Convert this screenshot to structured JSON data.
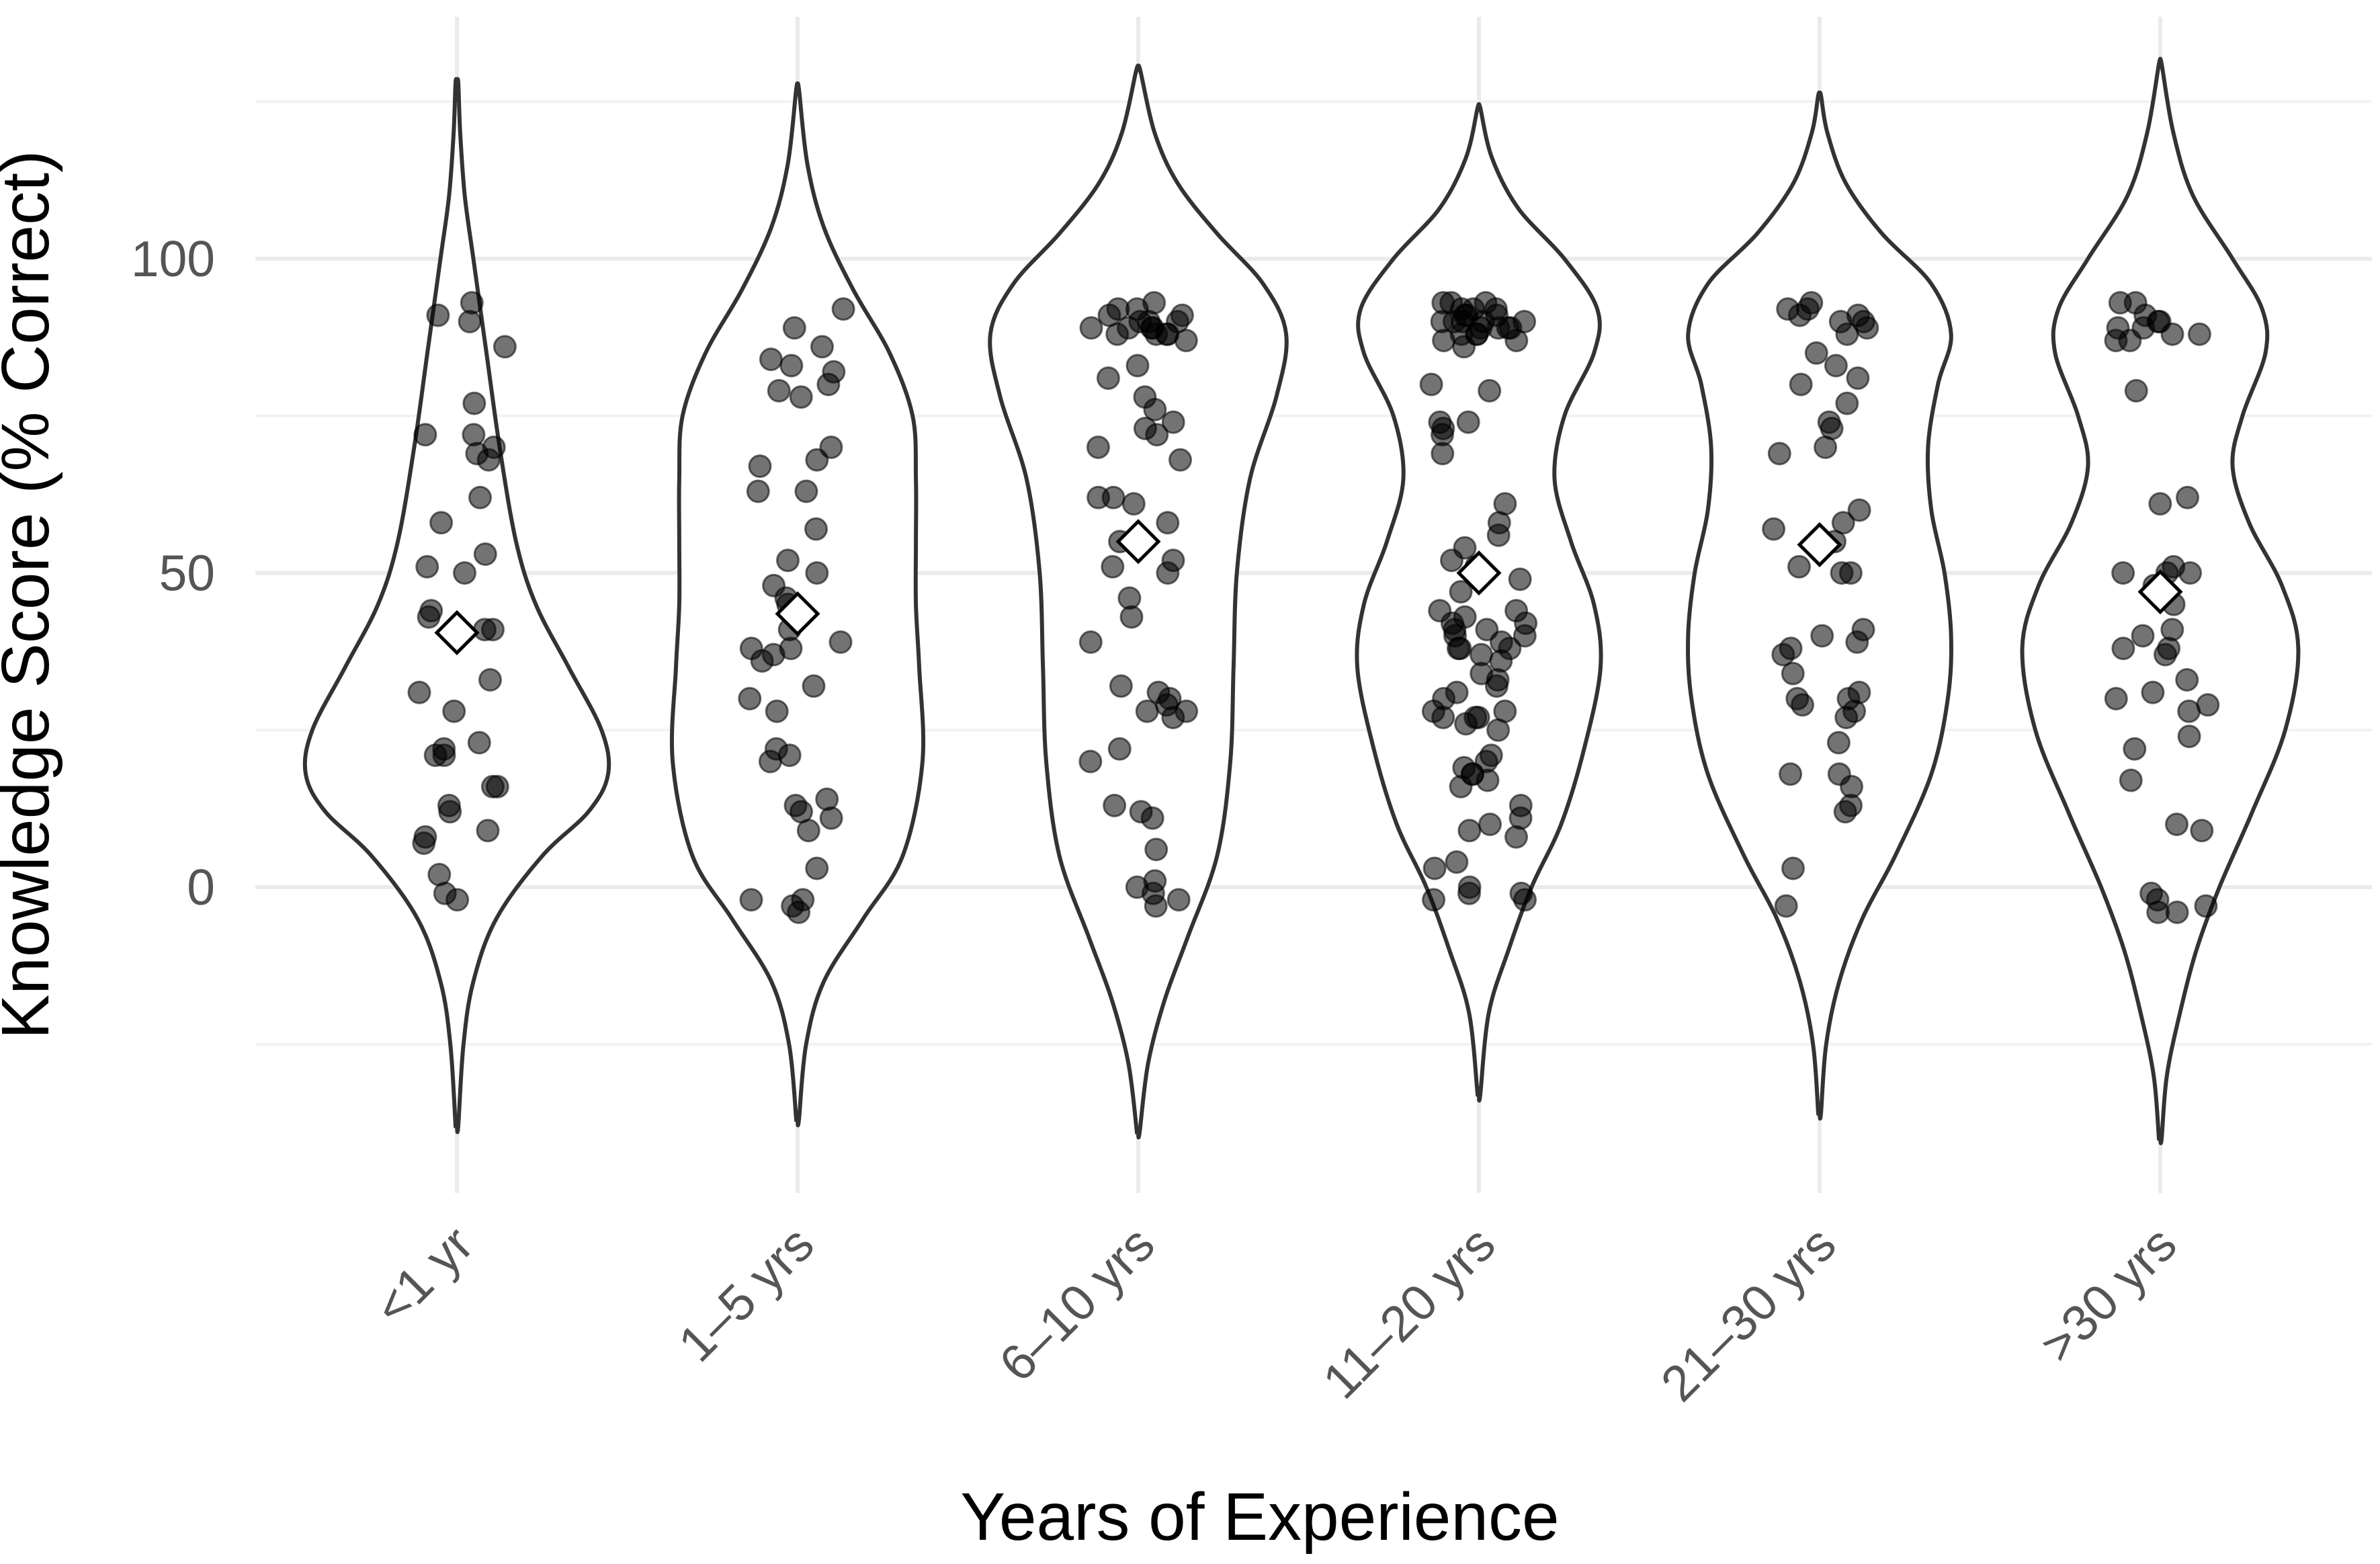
{
  "chart_data": {
    "type": "violin",
    "title": "",
    "xlabel": "Years of Experience",
    "ylabel": "Knowledge Score (% Correct)",
    "ylim": [
      -50,
      130
    ],
    "yticks": [
      0,
      50,
      100
    ],
    "grid": true,
    "legend": "none",
    "categories": [
      "<1 yr",
      "1–5 yrs",
      "6–10 yrs",
      "11–20 yrs",
      "21–30 yrs",
      ">30 yrs"
    ],
    "groups": [
      {
        "category": "<1 yr",
        "mean": 40.5,
        "range": [
          -38,
          128
        ],
        "density": [
          [
            -38,
            0.2
          ],
          [
            -25,
            1
          ],
          [
            -15,
            2.5
          ],
          [
            -5,
            6
          ],
          [
            5,
            13
          ],
          [
            12,
            20
          ],
          [
            18,
            23
          ],
          [
            25,
            22
          ],
          [
            35,
            17
          ],
          [
            45,
            12
          ],
          [
            55,
            9
          ],
          [
            70,
            6.5
          ],
          [
            85,
            4.5
          ],
          [
            100,
            2.5
          ],
          [
            110,
            1.2
          ],
          [
            120,
            0.5
          ],
          [
            128,
            0.2
          ]
        ],
        "points": [
          93,
          91,
          90,
          86,
          77,
          72,
          72,
          70,
          69,
          68,
          62,
          58,
          53,
          51,
          50,
          44,
          43,
          41,
          41,
          33,
          31,
          28,
          23,
          22,
          21,
          21,
          16,
          16,
          13,
          12,
          9,
          8,
          7,
          2,
          -1,
          -2
        ]
      },
      {
        "category": "1–5 yrs",
        "mean": 43.5,
        "range": [
          -37,
          127
        ],
        "density": [
          [
            -37,
            0.2
          ],
          [
            -25,
            1.3
          ],
          [
            -15,
            4
          ],
          [
            -5,
            10
          ],
          [
            5,
            16
          ],
          [
            20,
            19
          ],
          [
            35,
            18.5
          ],
          [
            45,
            18
          ],
          [
            55,
            18
          ],
          [
            65,
            18
          ],
          [
            75,
            17.5
          ],
          [
            85,
            14
          ],
          [
            95,
            8.5
          ],
          [
            105,
            4
          ],
          [
            115,
            1.5
          ],
          [
            127,
            0.2
          ]
        ],
        "points": [
          92,
          89,
          86,
          84,
          83,
          82,
          80,
          79,
          78,
          70,
          68,
          67,
          63,
          63,
          57,
          52,
          50,
          48,
          46,
          45,
          41,
          39,
          38,
          38,
          37,
          36,
          32,
          30,
          28,
          22,
          21,
          20,
          14,
          13,
          12,
          11,
          9,
          3,
          -2,
          -2,
          -3,
          -4
        ]
      },
      {
        "category": "6–10 yrs",
        "mean": 55,
        "range": [
          -39,
          130
        ],
        "density": [
          [
            -39,
            0.2
          ],
          [
            -28,
            1.5
          ],
          [
            -18,
            4
          ],
          [
            -8,
            7.5
          ],
          [
            5,
            12
          ],
          [
            20,
            14
          ],
          [
            35,
            14.5
          ],
          [
            50,
            15
          ],
          [
            65,
            17
          ],
          [
            78,
            21
          ],
          [
            88,
            22.5
          ],
          [
            96,
            19
          ],
          [
            104,
            12
          ],
          [
            112,
            6
          ],
          [
            120,
            2.5
          ],
          [
            130,
            0.3
          ]
        ],
        "points": [
          93,
          92,
          92,
          91,
          91,
          90,
          90,
          90,
          89,
          89,
          89,
          89,
          88,
          88,
          88,
          88,
          87,
          83,
          81,
          78,
          76,
          74,
          73,
          72,
          70,
          68,
          62,
          62,
          61,
          58,
          55,
          52,
          51,
          50,
          46,
          43,
          39,
          32,
          31,
          30,
          29,
          28,
          28,
          27,
          22,
          20,
          13,
          12,
          11,
          6,
          1,
          0,
          -1,
          -2,
          -3
        ]
      },
      {
        "category": "11–20 yrs",
        "mean": 50,
        "range": [
          -33,
          124
        ],
        "density": [
          [
            -33,
            0.2
          ],
          [
            -20,
            1.5
          ],
          [
            -10,
            4.5
          ],
          [
            0,
            8
          ],
          [
            10,
            12.5
          ],
          [
            22,
            16
          ],
          [
            35,
            18.5
          ],
          [
            45,
            17.5
          ],
          [
            55,
            14
          ],
          [
            65,
            11.5
          ],
          [
            75,
            13
          ],
          [
            85,
            17.5
          ],
          [
            92,
            18
          ],
          [
            100,
            13
          ],
          [
            108,
            6
          ],
          [
            116,
            2
          ],
          [
            124,
            0.2
          ]
        ],
        "points": [
          93,
          93,
          93,
          92,
          92,
          92,
          91,
          91,
          91,
          90,
          90,
          90,
          90,
          90,
          89,
          89,
          89,
          89,
          88,
          88,
          88,
          87,
          87,
          86,
          80,
          79,
          74,
          74,
          73,
          72,
          69,
          61,
          58,
          56,
          54,
          52,
          51,
          49,
          47,
          44,
          44,
          43,
          42,
          42,
          41,
          41,
          40,
          40,
          39,
          38,
          38,
          38,
          37,
          36,
          34,
          33,
          32,
          31,
          30,
          28,
          28,
          27,
          27,
          27,
          26,
          25,
          21,
          20,
          19,
          18,
          18,
          17,
          16,
          13,
          11,
          10,
          9,
          8,
          4,
          3,
          0,
          -1,
          -1,
          -2,
          -2
        ]
      },
      {
        "category": "21–30 yrs",
        "mean": 54.5,
        "range": [
          -36,
          126
        ],
        "density": [
          [
            -36,
            0.2
          ],
          [
            -25,
            1
          ],
          [
            -15,
            3
          ],
          [
            -5,
            6.5
          ],
          [
            5,
            11.5
          ],
          [
            18,
            17
          ],
          [
            30,
            19.5
          ],
          [
            40,
            20
          ],
          [
            50,
            19
          ],
          [
            60,
            17
          ],
          [
            70,
            16.5
          ],
          [
            80,
            18
          ],
          [
            88,
            20
          ],
          [
            96,
            17
          ],
          [
            104,
            9.5
          ],
          [
            112,
            4
          ],
          [
            120,
            1.2
          ],
          [
            126,
            0.2
          ]
        ],
        "points": [
          93,
          92,
          92,
          91,
          91,
          90,
          90,
          89,
          88,
          85,
          83,
          81,
          80,
          77,
          74,
          73,
          70,
          69,
          60,
          58,
          57,
          55,
          51,
          50,
          50,
          41,
          40,
          39,
          38,
          37,
          34,
          31,
          30,
          30,
          29,
          28,
          27,
          23,
          18,
          18,
          16,
          13,
          12,
          3,
          -3
        ]
      },
      {
        "category": ">30 yrs",
        "mean": 47,
        "range": [
          -40,
          131
        ],
        "density": [
          [
            -40,
            0.2
          ],
          [
            -30,
            1
          ],
          [
            -20,
            3
          ],
          [
            -10,
            5.5
          ],
          [
            0,
            9
          ],
          [
            12,
            14
          ],
          [
            25,
            19
          ],
          [
            38,
            21
          ],
          [
            48,
            18.5
          ],
          [
            58,
            13.5
          ],
          [
            67,
            11
          ],
          [
            75,
            12.5
          ],
          [
            85,
            16
          ],
          [
            92,
            15.5
          ],
          [
            100,
            11
          ],
          [
            110,
            5
          ],
          [
            120,
            2
          ],
          [
            131,
            0.2
          ]
        ],
        "points": [
          93,
          93,
          91,
          90,
          90,
          89,
          89,
          88,
          88,
          87,
          87,
          79,
          62,
          61,
          51,
          50,
          50,
          50,
          48,
          45,
          41,
          40,
          38,
          38,
          37,
          33,
          31,
          30,
          29,
          28,
          24,
          22,
          17,
          10,
          9,
          -1,
          -2,
          -3,
          -4,
          -4
        ]
      }
    ]
  }
}
